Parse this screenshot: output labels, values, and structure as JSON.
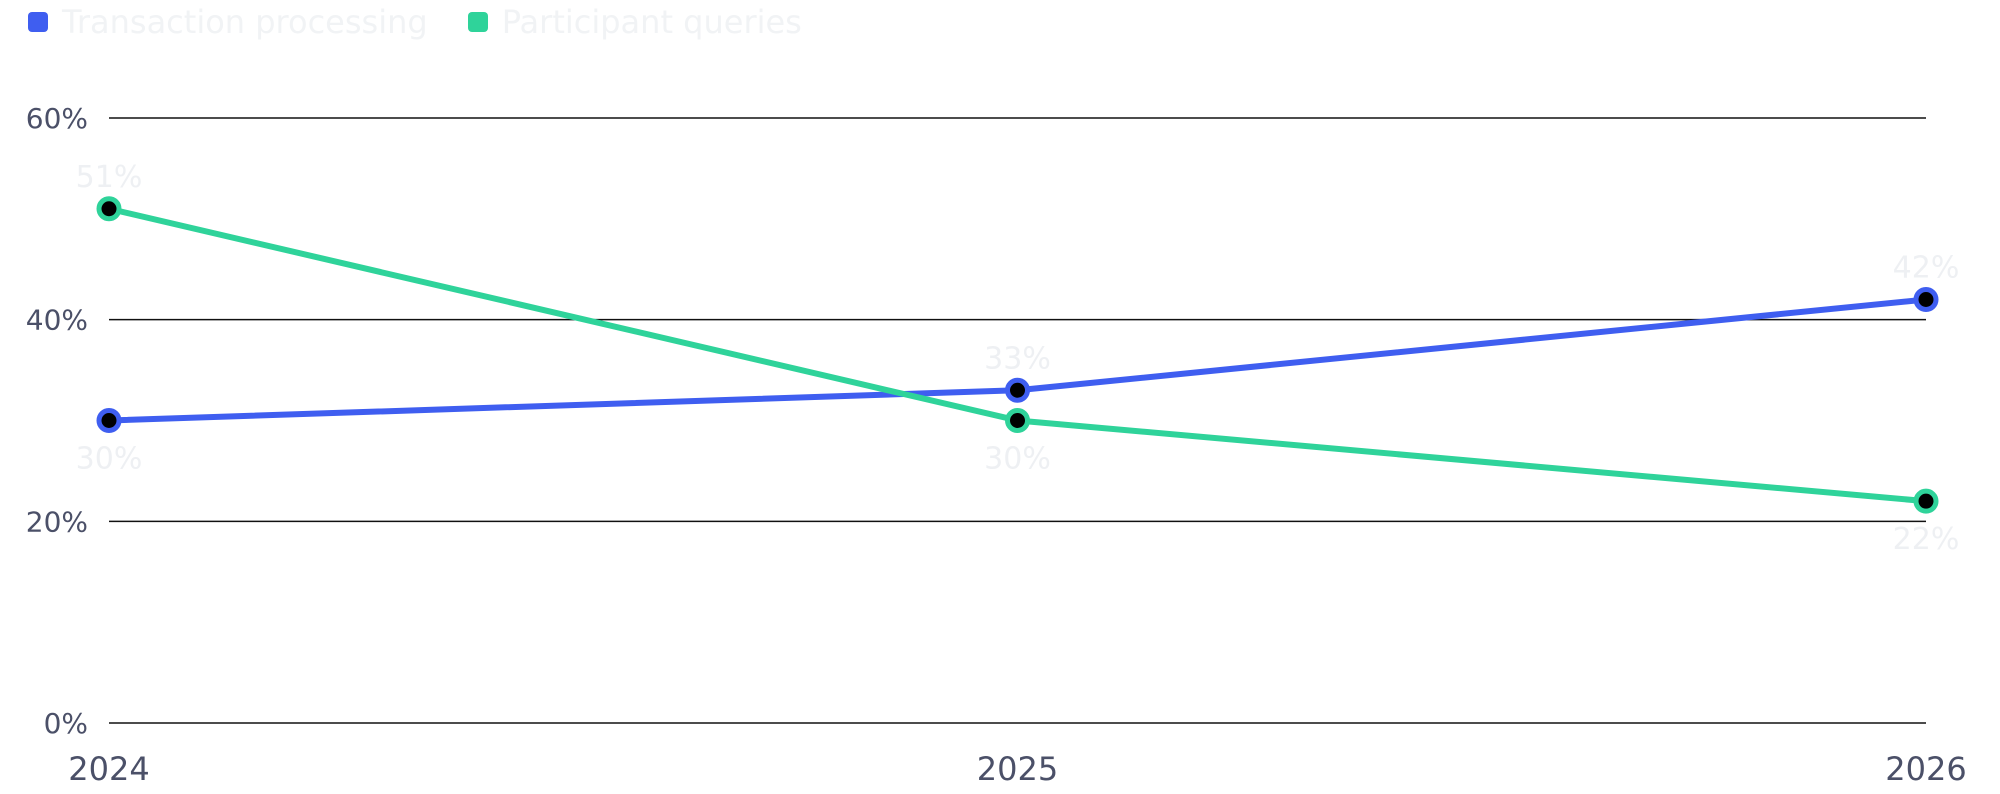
{
  "chart_data": {
    "type": "line",
    "categories": [
      "2024",
      "2025",
      "2026"
    ],
    "y_ticks": [
      "0%",
      "20%",
      "40%",
      "60%"
    ],
    "ylim": [
      0,
      60
    ],
    "grid": true,
    "legend_position": "top-left",
    "series": [
      {
        "name": "Transaction processing",
        "color": "#3f5ef0",
        "values": [
          30,
          33,
          42
        ],
        "labels": [
          "30%",
          "33%",
          "42%"
        ]
      },
      {
        "name": "Participant queries",
        "color": "#2fd39a",
        "values": [
          51,
          30,
          22
        ],
        "labels": [
          "51%",
          "30%",
          "22%"
        ]
      }
    ]
  }
}
